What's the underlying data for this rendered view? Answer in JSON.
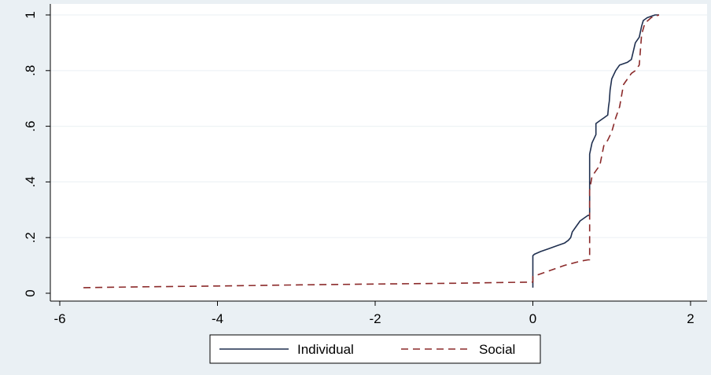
{
  "chart_data": {
    "type": "line",
    "title": "",
    "xlabel": "",
    "ylabel": "",
    "xlim": [
      -6.2,
      2.15
    ],
    "ylim": [
      0,
      1
    ],
    "x_ticks": [
      -6,
      -4,
      -2,
      0,
      2
    ],
    "x_tick_labels": [
      "-6",
      "-4",
      "-2",
      "0",
      "2"
    ],
    "y_ticks": [
      0,
      0.2,
      0.4,
      0.6,
      0.8,
      1
    ],
    "y_tick_labels": [
      "0",
      ".2",
      ".4",
      ".6",
      ".8",
      "1"
    ],
    "grid": "horizontal",
    "legend_position": "bottom",
    "series": [
      {
        "name": "Individual",
        "color": "#1f2f4f",
        "dash": "solid",
        "x": [
          0,
          0,
          0.02,
          0.1,
          0.2,
          0.3,
          0.4,
          0.45,
          0.48,
          0.5,
          0.55,
          0.6,
          0.65,
          0.7,
          0.72,
          0.72,
          0.75,
          0.8,
          0.8,
          0.85,
          0.9,
          0.95,
          0.96,
          0.97,
          0.98,
          1.0,
          1.05,
          1.1,
          1.2,
          1.25,
          1.3,
          1.35,
          1.38,
          1.4,
          1.45,
          1.55,
          1.6
        ],
        "y": [
          0.02,
          0.135,
          0.14,
          0.15,
          0.16,
          0.17,
          0.18,
          0.19,
          0.2,
          0.22,
          0.24,
          0.26,
          0.27,
          0.28,
          0.28,
          0.5,
          0.54,
          0.57,
          0.61,
          0.62,
          0.63,
          0.64,
          0.67,
          0.69,
          0.73,
          0.77,
          0.8,
          0.82,
          0.83,
          0.84,
          0.9,
          0.92,
          0.96,
          0.98,
          0.99,
          1.0,
          1.0
        ]
      },
      {
        "name": "Social",
        "color": "#8b2a2a",
        "dash": "dashed",
        "x": [
          -5.7,
          -5.0,
          -4.0,
          -3.0,
          -2.0,
          -1.0,
          -0.5,
          0,
          0,
          0.2,
          0.4,
          0.6,
          0.7,
          0.72,
          0.72,
          0.75,
          0.8,
          0.85,
          0.9,
          0.95,
          1.0,
          1.05,
          1.1,
          1.15,
          1.2,
          1.25,
          1.3,
          1.35,
          1.38,
          1.42,
          1.5,
          1.6
        ],
        "y": [
          0.02,
          0.023,
          0.026,
          0.03,
          0.033,
          0.036,
          0.038,
          0.04,
          0.06,
          0.08,
          0.1,
          0.115,
          0.12,
          0.12,
          0.37,
          0.42,
          0.44,
          0.46,
          0.53,
          0.55,
          0.58,
          0.63,
          0.67,
          0.75,
          0.77,
          0.79,
          0.8,
          0.82,
          0.93,
          0.97,
          0.99,
          1.0
        ]
      }
    ]
  }
}
